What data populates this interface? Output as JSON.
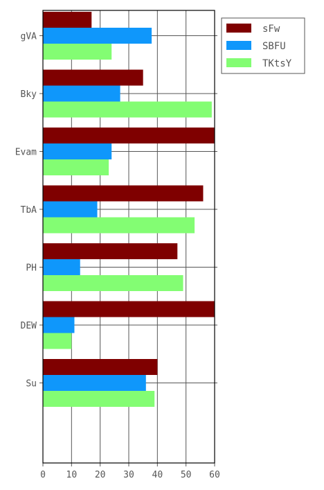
{
  "chart_data": {
    "type": "bar",
    "orientation": "horizontal",
    "title": "",
    "xlabel": "",
    "ylabel": "",
    "categories": [
      "gVA",
      "Bky",
      "Evam",
      "TbA",
      "PH",
      "DEW",
      "Su"
    ],
    "series": [
      {
        "name": "sFw",
        "color": "#7f0000",
        "values": [
          17,
          35,
          60,
          56,
          47,
          60,
          40
        ]
      },
      {
        "name": "SBFU",
        "color": "#0f97fb",
        "values": [
          38,
          27,
          24,
          19,
          13,
          11,
          36
        ]
      },
      {
        "name": "TKtsY",
        "color": "#83fd73",
        "values": [
          24,
          59,
          23,
          53,
          49,
          10,
          39
        ]
      }
    ],
    "xlim": [
      0,
      60
    ],
    "xticks": [
      "0",
      "10",
      "20",
      "30",
      "40",
      "50",
      "60"
    ],
    "grid": true,
    "legend": "top-right"
  }
}
